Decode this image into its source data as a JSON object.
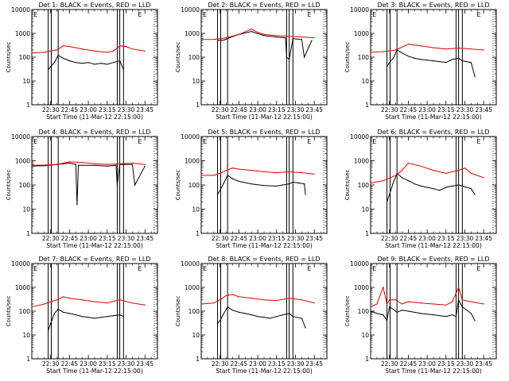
{
  "figure": {
    "panel_title_suffix": "BLACK = Events, RED = LLD",
    "xlabel": "Start Time (11-Mar-12 22:15:00)",
    "ylabel": "Counts/sec"
  },
  "colors": {
    "events": "#000000",
    "lld": "#e00000",
    "axes": "#000000"
  },
  "chart_data": [
    {
      "type": "line",
      "title": "Det 1: BLACK = Events, RED = LLD",
      "xlabel": "Start Time (11-Mar-12 22:15:00)",
      "ylabel": "Counts/sec",
      "y_scale": "log",
      "ylim": [
        1,
        10000
      ],
      "xlim_minutes": [
        0,
        100
      ],
      "x_tick_labels": [
        "22:30",
        "22:45",
        "23:00",
        "23:15",
        "23:30",
        "23:45"
      ],
      "y_tick_labels": [
        "1",
        "10",
        "100",
        "1000",
        "10000"
      ],
      "vlines_minutes": [
        13,
        15.5,
        21,
        68,
        70,
        73
      ],
      "vline_letters": [
        {
          "x": 3,
          "label": "E"
        },
        {
          "x": 86,
          "label": "E"
        }
      ],
      "dotted_right_edge": true,
      "series": [
        {
          "name": "Events",
          "color": "#000000",
          "x": [
            13,
            15,
            18,
            21,
            25,
            30,
            35,
            40,
            45,
            50,
            55,
            60,
            65,
            70,
            73
          ],
          "y": [
            30,
            40,
            60,
            120,
            90,
            70,
            60,
            55,
            60,
            50,
            55,
            50,
            60,
            70,
            30
          ]
        },
        {
          "name": "LLD",
          "color": "#e00000",
          "x": [
            0,
            10,
            15,
            20,
            25,
            30,
            35,
            40,
            45,
            50,
            55,
            60,
            65,
            70,
            75,
            80,
            85,
            90
          ],
          "y": [
            150,
            160,
            180,
            200,
            300,
            280,
            250,
            220,
            200,
            180,
            170,
            160,
            180,
            300,
            280,
            220,
            200,
            180
          ]
        }
      ]
    },
    {
      "type": "line",
      "title": "Det 2: BLACK = Events, RED = LLD",
      "xlabel": "Start Time (11-Mar-12 22:15:00)",
      "ylabel": "Counts/sec",
      "y_scale": "log",
      "ylim": [
        1,
        10000
      ],
      "xlim_minutes": [
        0,
        100
      ],
      "x_tick_labels": [
        "22:30",
        "22:45",
        "23:00",
        "23:15",
        "23:30",
        "23:45"
      ],
      "y_tick_labels": [
        "1",
        "10",
        "100",
        "1000",
        "10000"
      ],
      "vlines_minutes": [
        13,
        15.5,
        21,
        68,
        70,
        73
      ],
      "vline_letters": [
        {
          "x": 3,
          "label": "E"
        },
        {
          "x": 86,
          "label": "E"
        }
      ],
      "dotted_right_edge": true,
      "series": [
        {
          "name": "Events",
          "color": "#000000",
          "x": [
            13,
            18,
            21,
            24,
            30,
            40,
            50,
            60,
            67,
            68,
            70,
            73,
            80,
            82,
            88
          ],
          "y": [
            500,
            520,
            600,
            700,
            900,
            1200,
            800,
            700,
            650,
            100,
            80,
            600,
            550,
            100,
            500
          ]
        },
        {
          "name": "LLD",
          "color": "#e00000",
          "x": [
            0,
            10,
            20,
            30,
            40,
            45,
            50,
            60,
            70,
            80,
            90
          ],
          "y": [
            550,
            560,
            650,
            900,
            1500,
            1100,
            900,
            800,
            750,
            700,
            650
          ]
        }
      ]
    },
    {
      "type": "line",
      "title": "Det 3: BLACK = Events, RED = LLD",
      "xlabel": "Start Time (11-Mar-12 22:15:00)",
      "ylabel": "Counts/sec",
      "y_scale": "log",
      "ylim": [
        1,
        10000
      ],
      "xlim_minutes": [
        0,
        100
      ],
      "x_tick_labels": [
        "22:30",
        "22:45",
        "23:00",
        "23:15",
        "23:30",
        "23:45"
      ],
      "y_tick_labels": [
        "1",
        "10",
        "100",
        "1000",
        "10000"
      ],
      "vlines_minutes": [
        13,
        15.5,
        21,
        68,
        70,
        73
      ],
      "vline_letters": [
        {
          "x": 3,
          "label": "E"
        },
        {
          "x": 86,
          "label": "E"
        }
      ],
      "dotted_right_edge": true,
      "series": [
        {
          "name": "Events",
          "color": "#000000",
          "x": [
            13,
            15,
            18,
            21,
            25,
            30,
            35,
            40,
            45,
            50,
            55,
            60,
            65,
            70,
            73,
            80,
            83
          ],
          "y": [
            40,
            60,
            90,
            200,
            150,
            110,
            90,
            80,
            75,
            70,
            65,
            60,
            80,
            90,
            70,
            60,
            15
          ]
        },
        {
          "name": "LLD",
          "color": "#e00000",
          "x": [
            0,
            10,
            20,
            30,
            40,
            50,
            60,
            70,
            80,
            90
          ],
          "y": [
            160,
            170,
            200,
            350,
            300,
            250,
            220,
            240,
            220,
            200
          ]
        }
      ]
    },
    {
      "type": "line",
      "title": "Det 4: BLACK = Events, RED = LLD",
      "xlabel": "Start Time (11-Mar-12 22:15:00)",
      "ylabel": "Counts/sec",
      "y_scale": "log",
      "ylim": [
        1,
        10000
      ],
      "xlim_minutes": [
        0,
        100
      ],
      "x_tick_labels": [
        "22:30",
        "22:45",
        "23:00",
        "23:15",
        "23:30",
        "23:45"
      ],
      "y_tick_labels": [
        "1",
        "10",
        "100",
        "1000",
        "10000"
      ],
      "vlines_minutes": [
        13,
        15.5,
        21,
        68,
        70,
        73
      ],
      "vline_letters": [
        {
          "x": 3,
          "label": "E"
        },
        {
          "x": 86,
          "label": "E"
        }
      ],
      "dotted_right_edge": true,
      "series": [
        {
          "name": "Events",
          "color": "#000000",
          "x": [
            0,
            10,
            20,
            30,
            35,
            36,
            37,
            50,
            60,
            67,
            68,
            70,
            80,
            82,
            90
          ],
          "y": [
            600,
            620,
            700,
            800,
            700,
            15,
            650,
            650,
            600,
            650,
            100,
            700,
            700,
            100,
            600
          ]
        },
        {
          "name": "LLD",
          "color": "#e00000",
          "x": [
            0,
            10,
            20,
            30,
            40,
            50,
            60,
            70,
            80,
            90
          ],
          "y": [
            650,
            660,
            700,
            900,
            850,
            750,
            700,
            750,
            800,
            700
          ]
        }
      ]
    },
    {
      "type": "line",
      "title": "Det 5: BLACK = Events, RED = LLD",
      "xlabel": "Start Time (11-Mar-12 22:15:00)",
      "ylabel": "Counts/sec",
      "y_scale": "log",
      "ylim": [
        1,
        10000
      ],
      "xlim_minutes": [
        0,
        100
      ],
      "x_tick_labels": [
        "22:30",
        "22:45",
        "23:00",
        "23:15",
        "23:30",
        "23:45"
      ],
      "y_tick_labels": [
        "1",
        "10",
        "100",
        "1000",
        "10000"
      ],
      "vlines_minutes": [
        13,
        15.5,
        21,
        68,
        70,
        73
      ],
      "vline_letters": [
        {
          "x": 3,
          "label": "E"
        },
        {
          "x": 86,
          "label": "E"
        }
      ],
      "dotted_right_edge": true,
      "series": [
        {
          "name": "Events",
          "color": "#000000",
          "x": [
            13,
            15,
            18,
            21,
            25,
            30,
            40,
            50,
            60,
            65,
            70,
            73,
            78,
            82,
            83
          ],
          "y": [
            40,
            60,
            120,
            250,
            180,
            140,
            110,
            95,
            90,
            100,
            110,
            130,
            120,
            110,
            40
          ]
        },
        {
          "name": "LLD",
          "color": "#e00000",
          "x": [
            0,
            10,
            15,
            20,
            25,
            30,
            40,
            50,
            60,
            70,
            80,
            90
          ],
          "y": [
            250,
            250,
            300,
            400,
            500,
            450,
            400,
            350,
            320,
            350,
            320,
            280
          ]
        }
      ]
    },
    {
      "type": "line",
      "title": "Det 6: BLACK = Events, RED = LLD",
      "xlabel": "Start Time (11-Mar-12 22:15:00)",
      "ylabel": "Counts/sec",
      "y_scale": "log",
      "ylim": [
        1,
        10000
      ],
      "xlim_minutes": [
        0,
        100
      ],
      "x_tick_labels": [
        "22:30",
        "22:45",
        "23:00",
        "23:15",
        "23:30",
        "23:45"
      ],
      "y_tick_labels": [
        "1",
        "10",
        "100",
        "1000",
        "10000"
      ],
      "vlines_minutes": [
        13,
        15.5,
        21,
        68,
        70,
        73
      ],
      "vline_letters": [
        {
          "x": 3,
          "label": "E"
        },
        {
          "x": 86,
          "label": "E"
        }
      ],
      "dotted_right_edge": true,
      "series": [
        {
          "name": "Events",
          "color": "#000000",
          "x": [
            13,
            15,
            18,
            21,
            25,
            30,
            35,
            40,
            45,
            50,
            55,
            60,
            65,
            70,
            73,
            80,
            83
          ],
          "y": [
            20,
            40,
            120,
            300,
            200,
            150,
            110,
            90,
            80,
            70,
            60,
            80,
            90,
            100,
            90,
            70,
            40
          ]
        },
        {
          "name": "LLD",
          "color": "#e00000",
          "x": [
            0,
            10,
            20,
            25,
            30,
            40,
            50,
            60,
            70,
            75,
            80,
            90
          ],
          "y": [
            120,
            150,
            250,
            400,
            800,
            600,
            400,
            300,
            400,
            500,
            300,
            200
          ]
        }
      ]
    },
    {
      "type": "line",
      "title": "Det 7: BLACK = Events, RED = LLD",
      "xlabel": "Start Time (11-Mar-12 22:15:00)",
      "ylabel": "Counts/sec",
      "y_scale": "log",
      "ylim": [
        1,
        10000
      ],
      "xlim_minutes": [
        0,
        100
      ],
      "x_tick_labels": [
        "22:30",
        "22:45",
        "23:00",
        "23:15",
        "23:30",
        "23:45"
      ],
      "y_tick_labels": [
        "1",
        "10",
        "100",
        "1000",
        "10000"
      ],
      "vlines_minutes": [
        13,
        15.5,
        21,
        68,
        70,
        73
      ],
      "vline_letters": [
        {
          "x": 3,
          "label": "E"
        },
        {
          "x": 86,
          "label": "E"
        }
      ],
      "dotted_right_edge": true,
      "series": [
        {
          "name": "Events",
          "color": "#000000",
          "x": [
            13,
            15,
            18,
            21,
            25,
            30,
            35,
            40,
            45,
            50,
            55,
            60,
            65,
            70,
            73
          ],
          "y": [
            15,
            30,
            80,
            120,
            90,
            80,
            70,
            60,
            55,
            50,
            55,
            60,
            65,
            70,
            60
          ]
        },
        {
          "name": "LLD",
          "color": "#e00000",
          "x": [
            0,
            10,
            15,
            20,
            25,
            30,
            40,
            50,
            60,
            70,
            80,
            90
          ],
          "y": [
            150,
            200,
            250,
            300,
            400,
            350,
            300,
            250,
            220,
            300,
            220,
            180
          ]
        }
      ]
    },
    {
      "type": "line",
      "title": "Det 8: BLACK = Events, RED = LLD",
      "xlabel": "Start Time (11-Mar-12 22:15:00)",
      "ylabel": "Counts/sec",
      "y_scale": "log",
      "ylim": [
        1,
        10000
      ],
      "xlim_minutes": [
        0,
        100
      ],
      "x_tick_labels": [
        "22:30",
        "22:45",
        "23:00",
        "23:15",
        "23:30",
        "23:45"
      ],
      "y_tick_labels": [
        "1",
        "10",
        "100",
        "1000",
        "10000"
      ],
      "vlines_minutes": [
        13,
        15.5,
        21,
        68,
        70,
        73
      ],
      "vline_letters": [
        {
          "x": 3,
          "label": "E"
        },
        {
          "x": 86,
          "label": "E"
        }
      ],
      "dotted_right_edge": true,
      "series": [
        {
          "name": "Events",
          "color": "#000000",
          "x": [
            13,
            15,
            18,
            21,
            25,
            30,
            35,
            40,
            45,
            50,
            55,
            60,
            65,
            70,
            73,
            80,
            83
          ],
          "y": [
            30,
            40,
            80,
            150,
            110,
            90,
            80,
            70,
            60,
            55,
            50,
            60,
            70,
            80,
            60,
            50,
            20
          ]
        },
        {
          "name": "LLD",
          "color": "#e00000",
          "x": [
            0,
            10,
            15,
            20,
            25,
            30,
            40,
            50,
            60,
            70,
            80,
            90
          ],
          "y": [
            200,
            220,
            300,
            450,
            500,
            400,
            350,
            300,
            280,
            350,
            300,
            220
          ]
        }
      ]
    },
    {
      "type": "line",
      "title": "Det 9: BLACK = Events, RED = LLD",
      "xlabel": "Start Time (11-Mar-12 22:15:00)",
      "ylabel": "Counts/sec",
      "y_scale": "log",
      "ylim": [
        1,
        10000
      ],
      "xlim_minutes": [
        0,
        100
      ],
      "x_tick_labels": [
        "22:30",
        "22:45",
        "23:00",
        "23:15",
        "23:30",
        "23:45"
      ],
      "y_tick_labels": [
        "1",
        "10",
        "100",
        "1000",
        "10000"
      ],
      "vlines_minutes": [
        13,
        15.5,
        21,
        68,
        70,
        73
      ],
      "vline_letters": [
        {
          "x": 3,
          "label": "E"
        },
        {
          "x": 86,
          "label": "E"
        }
      ],
      "dotted_right_edge": true,
      "series": [
        {
          "name": "Events",
          "color": "#000000",
          "x": [
            0,
            5,
            10,
            13,
            15,
            18,
            21,
            25,
            30,
            40,
            50,
            60,
            65,
            68,
            70,
            73,
            80,
            83
          ],
          "y": [
            100,
            80,
            70,
            40,
            150,
            120,
            90,
            110,
            100,
            80,
            70,
            60,
            70,
            60,
            300,
            150,
            80,
            40
          ]
        },
        {
          "name": "LLD",
          "color": "#e00000",
          "x": [
            0,
            5,
            10,
            13,
            15,
            20,
            25,
            30,
            40,
            50,
            60,
            65,
            70,
            73,
            80,
            90
          ],
          "y": [
            150,
            200,
            1000,
            200,
            300,
            300,
            200,
            250,
            220,
            200,
            180,
            250,
            1000,
            300,
            250,
            200
          ]
        }
      ]
    }
  ]
}
